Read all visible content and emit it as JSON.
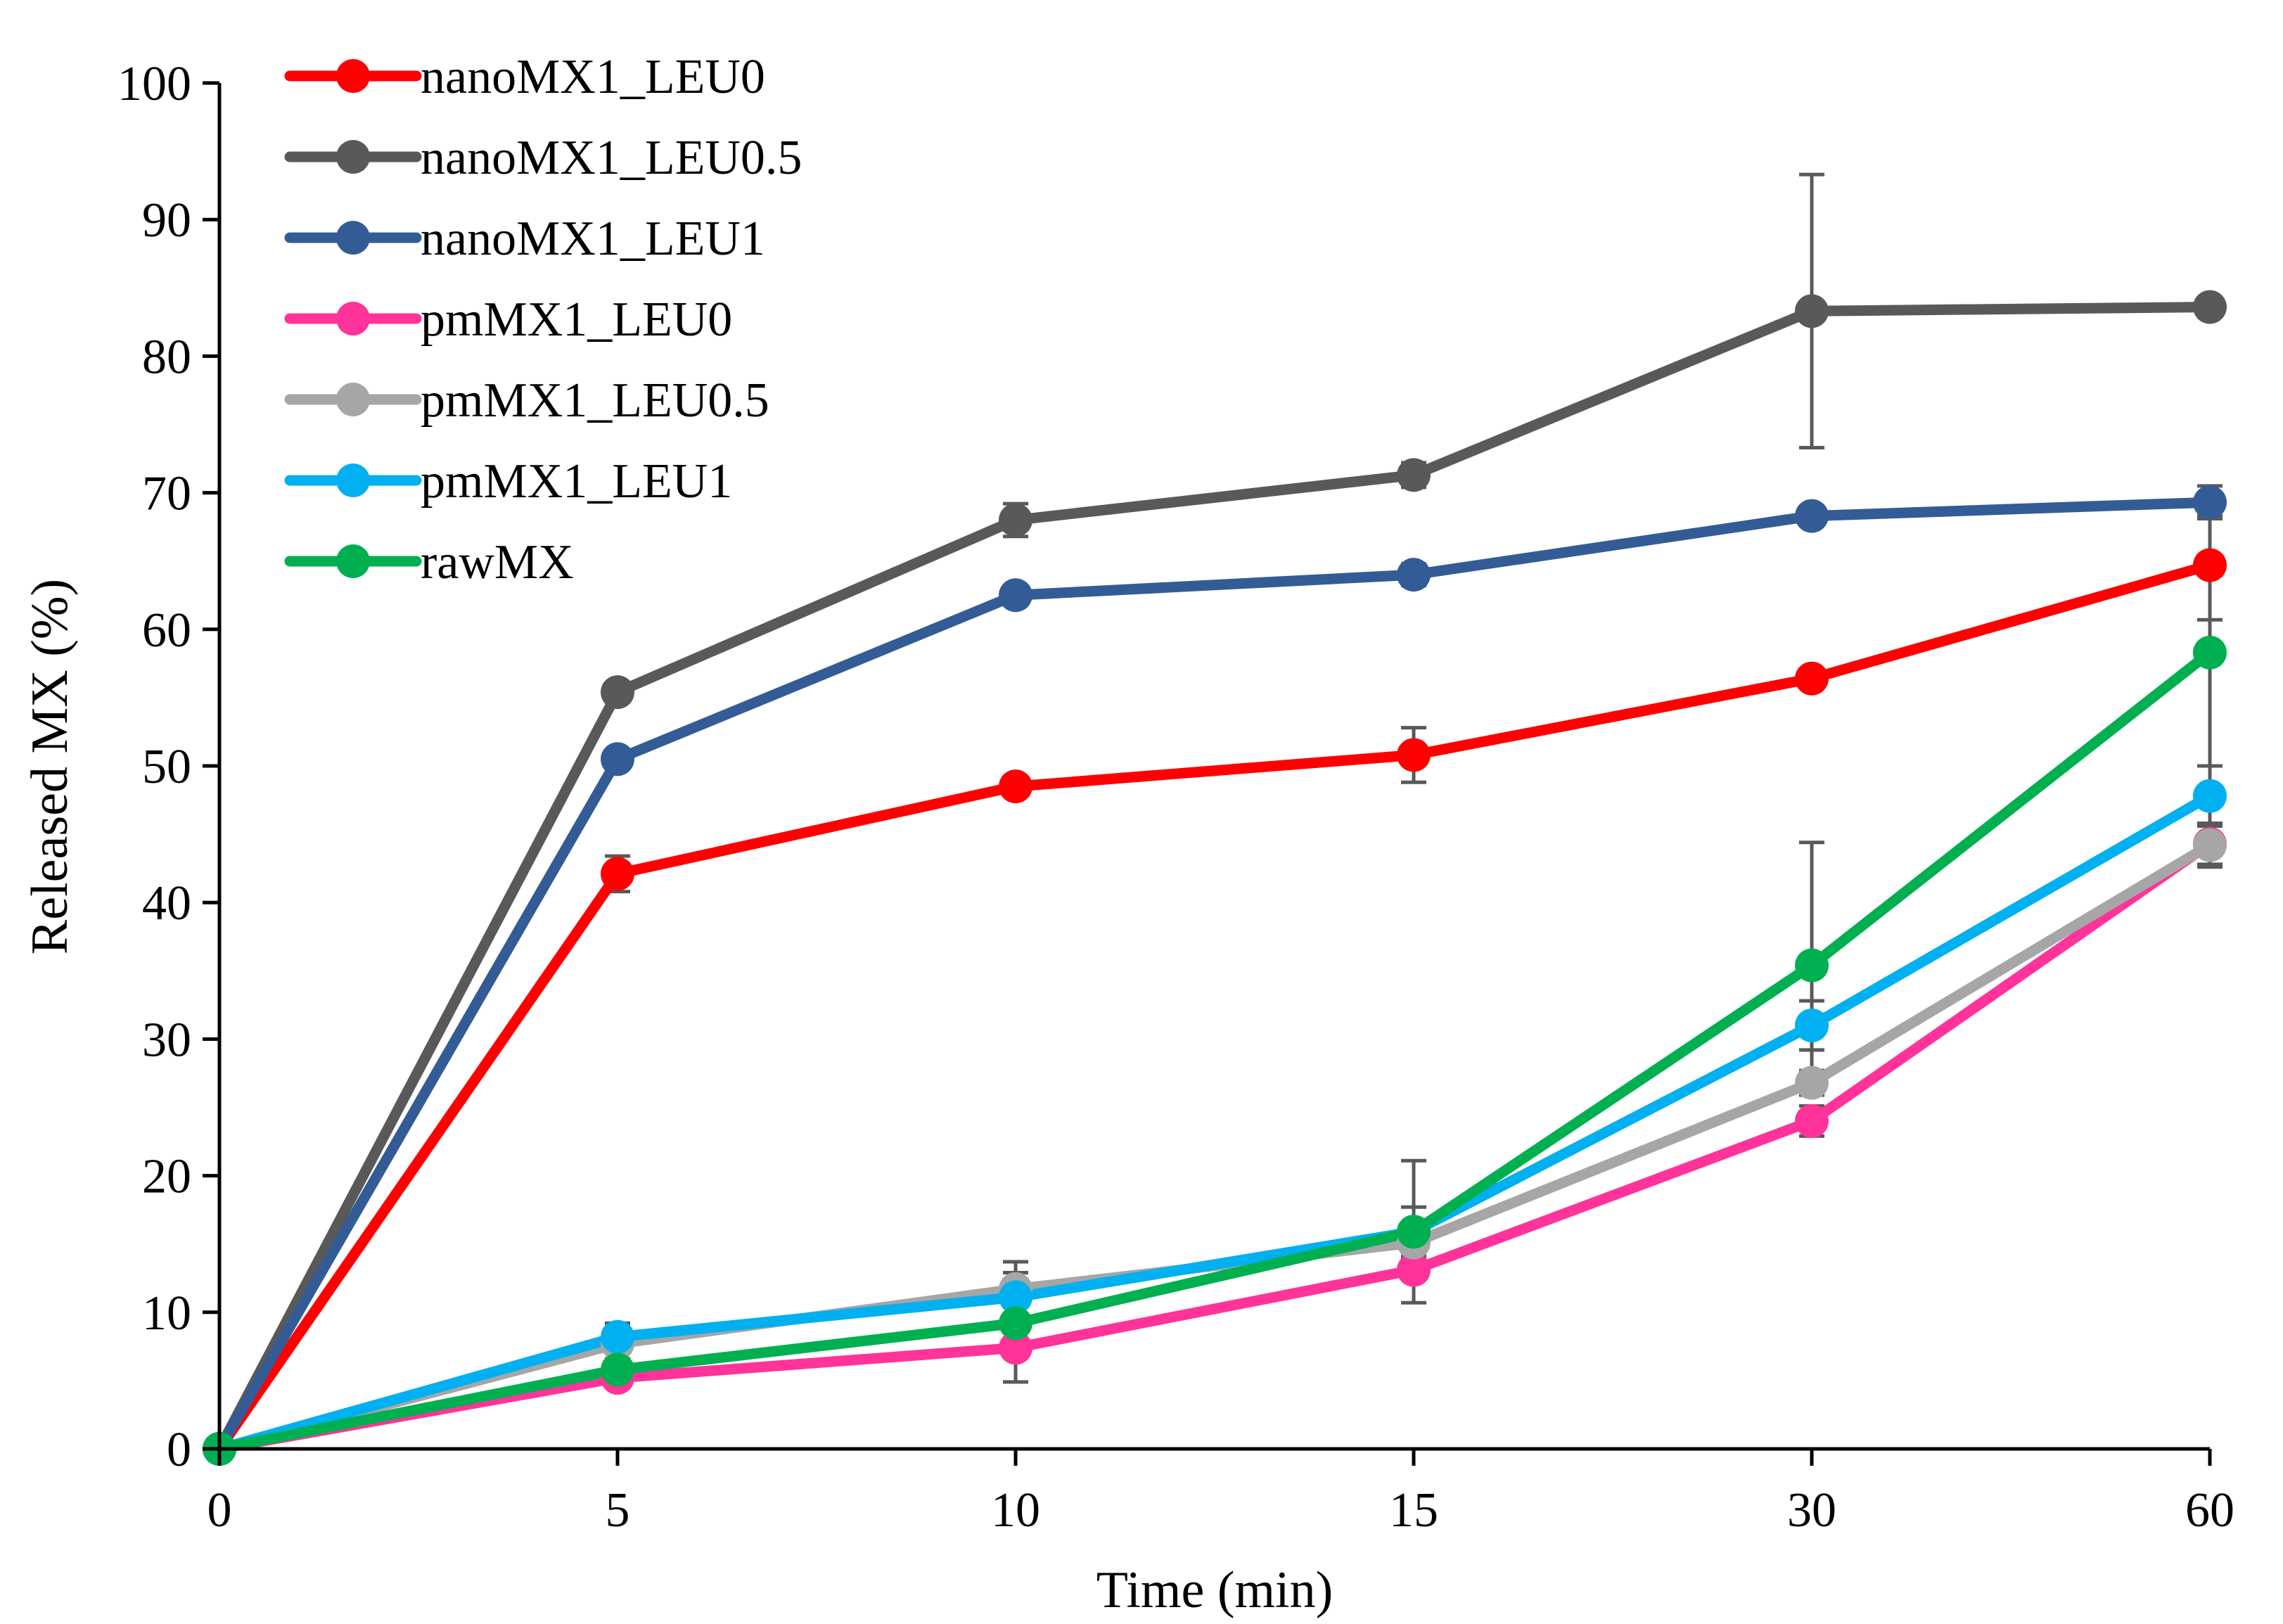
{
  "chart_data": {
    "type": "line",
    "title": "",
    "xlabel": "Time (min)",
    "ylabel": "Released MX (%)",
    "categories": [
      "0",
      "5",
      "10",
      "15",
      "30",
      "60"
    ],
    "ylim": [
      0,
      100
    ],
    "yticks": [
      "0",
      "10",
      "20",
      "30",
      "40",
      "50",
      "60",
      "70",
      "80",
      "90",
      "100"
    ],
    "grid": false,
    "legend_position": "top-left",
    "series": [
      {
        "name": "nanoMX1_LEU0",
        "color": "#ff0000",
        "values": [
          0,
          42.1,
          48.5,
          50.8,
          56.4,
          64.7
        ],
        "errors": [
          0,
          1.3,
          0.6,
          2.0,
          0.5,
          4.0
        ]
      },
      {
        "name": "nanoMX1_LEU0.5",
        "color": "#595959",
        "values": [
          0,
          55.4,
          68.0,
          71.3,
          83.3,
          83.6
        ],
        "errors": [
          0,
          0.7,
          1.2,
          0.9,
          10.0,
          0.5
        ]
      },
      {
        "name": "nanoMX1_LEU1",
        "color": "#335c96",
        "values": [
          0,
          50.5,
          62.5,
          64.0,
          68.3,
          69.3
        ],
        "errors": [
          0,
          0.5,
          0.6,
          0.8,
          0.7,
          1.2
        ]
      },
      {
        "name": "pmMX1_LEU0",
        "color": "#ff3399",
        "values": [
          0,
          5.2,
          7.4,
          13.1,
          24.0,
          44.3
        ],
        "errors": [
          0,
          0.6,
          2.5,
          0.6,
          1.1,
          1.5
        ]
      },
      {
        "name": "pmMX1_LEU0.5",
        "color": "#a6a6a6",
        "values": [
          0,
          7.7,
          11.7,
          15.1,
          26.8,
          44.2
        ],
        "errors": [
          0,
          1.5,
          2.0,
          1.2,
          0.9,
          1.6
        ]
      },
      {
        "name": "pmMX1_LEU1",
        "color": "#00b0f0",
        "values": [
          0,
          8.2,
          11.1,
          15.9,
          31.0,
          47.8
        ],
        "errors": [
          0,
          1.0,
          1.8,
          1.8,
          1.8,
          2.2
        ]
      },
      {
        "name": "rawMX",
        "color": "#00b050",
        "values": [
          0,
          5.8,
          9.2,
          15.9,
          35.4,
          58.3
        ],
        "errors": [
          0,
          0.8,
          1.2,
          5.2,
          9.0,
          10.0
        ]
      }
    ]
  }
}
